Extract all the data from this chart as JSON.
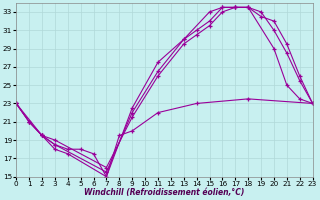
{
  "xlabel": "Windchill (Refroidissement éolien,°C)",
  "bg_color": "#c8f0f0",
  "line_color": "#990099",
  "grid_color": "#b0d8d8",
  "xlim": [
    0,
    23
  ],
  "ylim": [
    15,
    34
  ],
  "yticks": [
    15,
    17,
    19,
    21,
    23,
    25,
    27,
    29,
    31,
    33
  ],
  "xticks": [
    0,
    1,
    2,
    3,
    4,
    5,
    6,
    7,
    8,
    9,
    10,
    11,
    12,
    13,
    14,
    15,
    16,
    17,
    18,
    19,
    20,
    21,
    22,
    23
  ],
  "series": [
    {
      "x": [
        0,
        1,
        2,
        3,
        4,
        7,
        9,
        11,
        13,
        15,
        16,
        17,
        18,
        20,
        21,
        22,
        23
      ],
      "y": [
        23,
        21,
        19.5,
        18,
        17.5,
        15,
        22.5,
        27.5,
        30,
        33,
        33.5,
        33.5,
        33.5,
        29,
        25,
        23.5,
        23
      ]
    },
    {
      "x": [
        0,
        1,
        2,
        3,
        7,
        9,
        11,
        13,
        14,
        15,
        16,
        17,
        18,
        19,
        20,
        21,
        22,
        23
      ],
      "y": [
        23,
        21,
        19.5,
        18.5,
        15.5,
        22,
        26.5,
        30,
        31,
        32,
        33.5,
        33.5,
        33.5,
        32.5,
        32,
        29.5,
        26,
        23
      ]
    },
    {
      "x": [
        0,
        1,
        2,
        3,
        7,
        9,
        11,
        13,
        14,
        15,
        16,
        17,
        18,
        19,
        20,
        21,
        22,
        23
      ],
      "y": [
        23,
        21,
        19.5,
        19,
        16,
        21.5,
        26,
        29.5,
        30.5,
        31.5,
        33,
        33.5,
        33.5,
        33,
        31,
        28.5,
        25.5,
        23
      ]
    },
    {
      "x": [
        0,
        2,
        3,
        4,
        5,
        6,
        7,
        8,
        9,
        11,
        14,
        18,
        23
      ],
      "y": [
        23,
        19.5,
        18.5,
        18,
        18,
        17.5,
        15,
        19.5,
        20,
        22,
        23,
        23.5,
        23
      ]
    }
  ]
}
